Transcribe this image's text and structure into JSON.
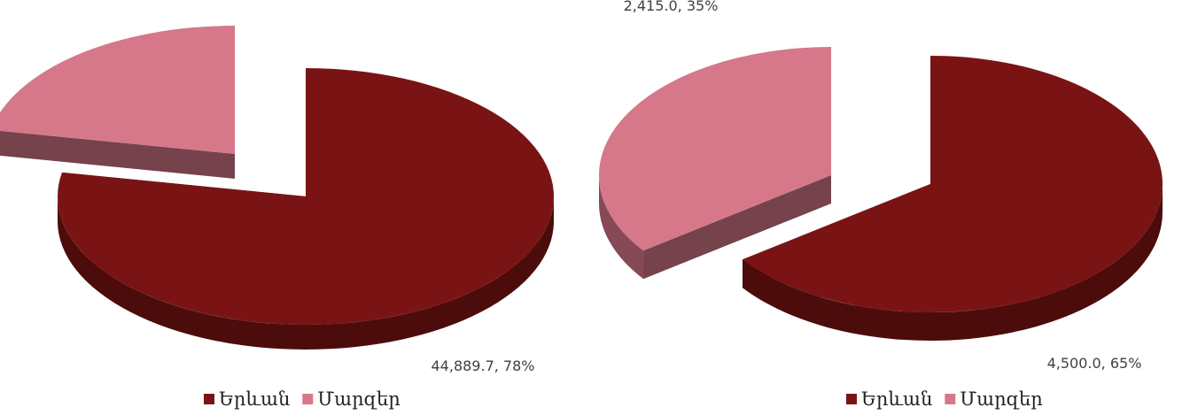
{
  "chart_data": [
    {
      "type": "pie",
      "style": "3d-exploded",
      "title": "",
      "slices": [
        {
          "name": "Երևան",
          "value": 44889.7,
          "percent": 78,
          "label": "44,889.7, 78%",
          "color": "#7a1414"
        },
        {
          "name": "Մարզեր",
          "value": 12661.3,
          "percent": 22,
          "label": "",
          "color": "#d6788a"
        }
      ],
      "legend_position": "bottom"
    },
    {
      "type": "pie",
      "style": "3d-exploded",
      "title": "",
      "slices": [
        {
          "name": "Երևան",
          "value": 4500.0,
          "percent": 65,
          "label": "4,500.0, 65%",
          "color": "#7a1414"
        },
        {
          "name": "Մարզեր",
          "value": 2415.0,
          "percent": 35,
          "label": "2,415.0, 35%",
          "color": "#d6788a"
        }
      ],
      "legend_position": "bottom"
    }
  ]
}
